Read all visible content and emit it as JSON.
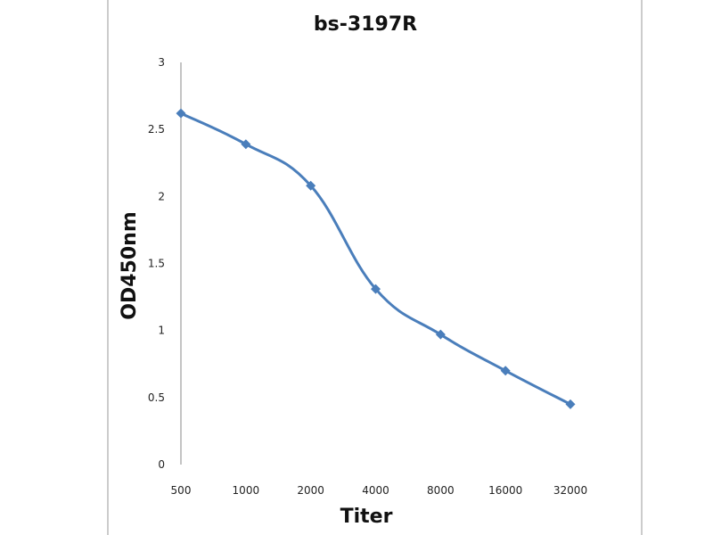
{
  "chart_data": {
    "type": "line",
    "title": "bs-3197R",
    "xlabel": "Titer",
    "ylabel": "OD450nm",
    "categories": [
      "500",
      "1000",
      "2000",
      "4000",
      "8000",
      "16000",
      "32000"
    ],
    "series": [
      {
        "name": "bs-3197R",
        "values": [
          2.62,
          2.39,
          2.08,
          1.31,
          0.97,
          0.7,
          0.45
        ],
        "color": "#4a7ebb"
      }
    ],
    "ylim": [
      0,
      3
    ],
    "yticks": [
      "0",
      "0.5",
      "1",
      "1.5",
      "2",
      "2.5",
      "3"
    ],
    "grid": false,
    "legend": "none"
  }
}
